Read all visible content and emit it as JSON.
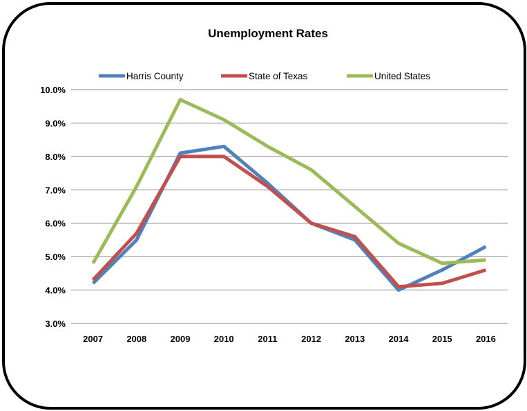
{
  "chart_data": {
    "type": "line",
    "title": "Unemployment  Rates",
    "categories": [
      "2007",
      "2008",
      "2009",
      "2010",
      "2011",
      "2012",
      "2013",
      "2014",
      "2015",
      "2016"
    ],
    "y_ticks": [
      "3.0%",
      "4.0%",
      "5.0%",
      "6.0%",
      "7.0%",
      "8.0%",
      "9.0%",
      "10.0%"
    ],
    "ylim": [
      3.0,
      10.0
    ],
    "grid": true,
    "legend_position": "top",
    "series": [
      {
        "name": "Harris County",
        "color": "#4f81bd",
        "values": [
          4.2,
          5.5,
          8.1,
          8.3,
          7.2,
          6.0,
          5.5,
          4.0,
          4.6,
          5.3
        ]
      },
      {
        "name": "State of Texas",
        "color": "#c0504d",
        "values": [
          4.3,
          5.7,
          8.0,
          8.0,
          7.1,
          6.0,
          5.6,
          4.1,
          4.2,
          4.6
        ]
      },
      {
        "name": "United States",
        "color": "#9bbb59",
        "values": [
          4.8,
          7.1,
          9.7,
          9.1,
          8.3,
          7.6,
          6.5,
          5.4,
          4.8,
          4.9
        ]
      }
    ]
  }
}
